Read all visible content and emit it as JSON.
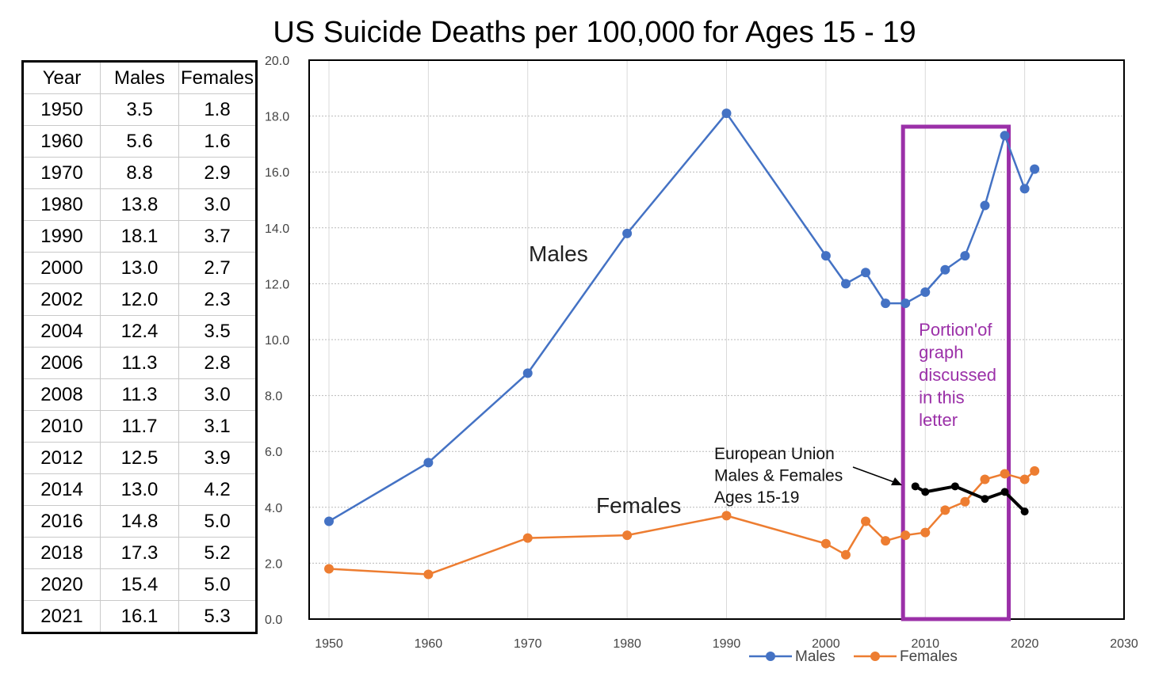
{
  "chart_data": {
    "type": "line",
    "title": "US Suicide Deaths per 100,000 for Ages 15 - 19",
    "xlim": [
      1950,
      2030
    ],
    "ylim": [
      0,
      20
    ],
    "x_ticks": [
      "1950",
      "1960",
      "1970",
      "1980",
      "1990",
      "2000",
      "2010",
      "2020",
      "2030"
    ],
    "y_ticks": [
      "0.0",
      "2.0",
      "4.0",
      "6.0",
      "8.0",
      "10.0",
      "12.0",
      "14.0",
      "16.0",
      "18.0",
      "20.0"
    ],
    "grid": true,
    "legend_position": "bottom",
    "series": [
      {
        "name": "Males",
        "color": "#4472c4",
        "x": [
          1950,
          1960,
          1970,
          1980,
          1990,
          2000,
          2002,
          2004,
          2006,
          2008,
          2010,
          2012,
          2014,
          2016,
          2018,
          2020,
          2021
        ],
        "y": [
          3.5,
          5.6,
          8.8,
          13.8,
          18.1,
          13.0,
          12.0,
          12.4,
          11.3,
          11.3,
          11.7,
          12.5,
          13.0,
          14.8,
          17.3,
          15.4,
          16.1
        ]
      },
      {
        "name": "Females",
        "color": "#ed7d31",
        "x": [
          1950,
          1960,
          1970,
          1980,
          1990,
          2000,
          2002,
          2004,
          2006,
          2008,
          2010,
          2012,
          2014,
          2016,
          2018,
          2020,
          2021
        ],
        "y": [
          1.8,
          1.6,
          2.9,
          3.0,
          3.7,
          2.7,
          2.3,
          3.5,
          2.8,
          3.0,
          3.1,
          3.9,
          4.2,
          5.0,
          5.2,
          5.0,
          5.3
        ]
      },
      {
        "name": "European Union Males & Females Ages 15-19",
        "color": "#000000",
        "x": [
          2009,
          2010,
          2013,
          2016,
          2018,
          2020
        ],
        "y": [
          4.75,
          4.55,
          4.75,
          4.3,
          4.55,
          3.85
        ]
      }
    ],
    "annotations": {
      "males_label": "Males",
      "females_label": "Females",
      "eu_label": [
        "European Union",
        "Males & Females",
        "Ages 15-19"
      ],
      "highlight_range": [
        2008,
        2018
      ],
      "highlight_color": "#9b30a8",
      "highlight_text": [
        "Portion'of",
        "graph",
        "discussed",
        "in this",
        "letter"
      ]
    },
    "legend": [
      "Males",
      "Females"
    ]
  },
  "table": {
    "headers": [
      "Year",
      "Males",
      "Females"
    ],
    "rows": [
      [
        "1950",
        "3.5",
        "1.8"
      ],
      [
        "1960",
        "5.6",
        "1.6"
      ],
      [
        "1970",
        "8.8",
        "2.9"
      ],
      [
        "1980",
        "13.8",
        "3.0"
      ],
      [
        "1990",
        "18.1",
        "3.7"
      ],
      [
        "2000",
        "13.0",
        "2.7"
      ],
      [
        "2002",
        "12.0",
        "2.3"
      ],
      [
        "2004",
        "12.4",
        "3.5"
      ],
      [
        "2006",
        "11.3",
        "2.8"
      ],
      [
        "2008",
        "11.3",
        "3.0"
      ],
      [
        "2010",
        "11.7",
        "3.1"
      ],
      [
        "2012",
        "12.5",
        "3.9"
      ],
      [
        "2014",
        "13.0",
        "4.2"
      ],
      [
        "2016",
        "14.8",
        "5.0"
      ],
      [
        "2018",
        "17.3",
        "5.2"
      ],
      [
        "2020",
        "15.4",
        "5.0"
      ],
      [
        "2021",
        "16.1",
        "5.3"
      ]
    ]
  }
}
